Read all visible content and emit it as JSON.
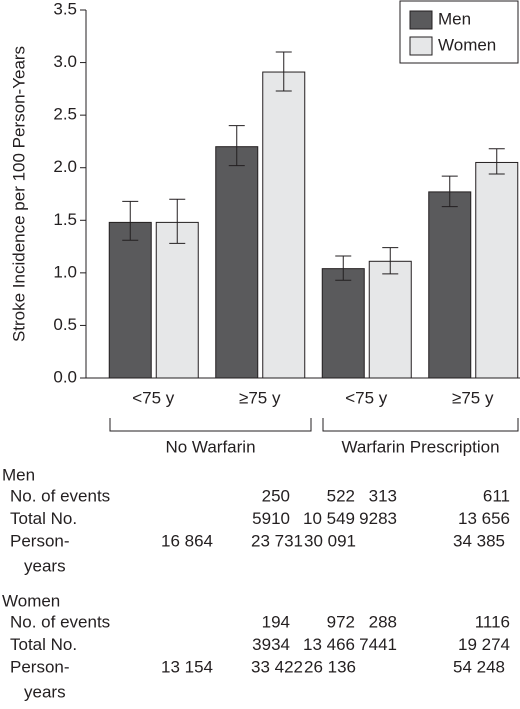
{
  "chart_data": {
    "type": "bar",
    "y_label": "Stroke Incidence per 100  Person-Years",
    "categories": [
      "<75 y",
      "≥75 y",
      "<75 y",
      "≥75 y"
    ],
    "groups": [
      {
        "label": "No Warfarin",
        "span": [
          0,
          1
        ]
      },
      {
        "label": "Warfarin Prescription",
        "span": [
          2,
          3
        ]
      }
    ],
    "series": [
      {
        "name": "Men",
        "color": "#5a5a5c",
        "values": [
          1.48,
          2.2,
          1.04,
          1.77
        ],
        "ci_low": [
          1.31,
          2.02,
          0.93,
          1.63
        ],
        "ci_high": [
          1.68,
          2.4,
          1.16,
          1.92
        ]
      },
      {
        "name": "Women",
        "color": "#e6e7e8",
        "values": [
          1.48,
          2.91,
          1.11,
          2.05
        ],
        "ci_low": [
          1.28,
          2.73,
          0.99,
          1.94
        ],
        "ci_high": [
          1.7,
          3.1,
          1.24,
          2.18
        ]
      }
    ],
    "ylim": [
      0,
      3.5
    ],
    "yticks": [
      {
        "value": 0,
        "label": "0.0"
      },
      0.5,
      {
        "value": 1,
        "label": "1.0"
      },
      1.5,
      {
        "value": 2,
        "label": "2.0"
      },
      2.5,
      {
        "value": 3,
        "label": "3.0"
      },
      3.5
    ],
    "legend": "top-right"
  },
  "table": {
    "sections": [
      {
        "title": "Men",
        "rows": [
          {
            "label": [
              "No. of events"
            ],
            "cells": [
              "250",
              "522",
              "313",
              "611"
            ]
          },
          {
            "label": [
              "Total No."
            ],
            "cells": [
              "5910",
              "10 549",
              "9283",
              "13 656"
            ]
          },
          {
            "label": [
              "Person-",
              "years"
            ],
            "cells": [
              "16 864",
              "23 731",
              "30 091",
              "34 385"
            ]
          }
        ]
      },
      {
        "title": "Women",
        "rows": [
          {
            "label": [
              "No. of events"
            ],
            "cells": [
              "194",
              "972",
              "288",
              "1116"
            ]
          },
          {
            "label": [
              "Total No."
            ],
            "cells": [
              "3934",
              "13 466",
              "7441",
              "19 274"
            ]
          },
          {
            "label": [
              "Person-",
              "years"
            ],
            "cells": [
              "13 154",
              "33 422",
              "26 136",
              "54 248"
            ]
          }
        ]
      }
    ]
  }
}
